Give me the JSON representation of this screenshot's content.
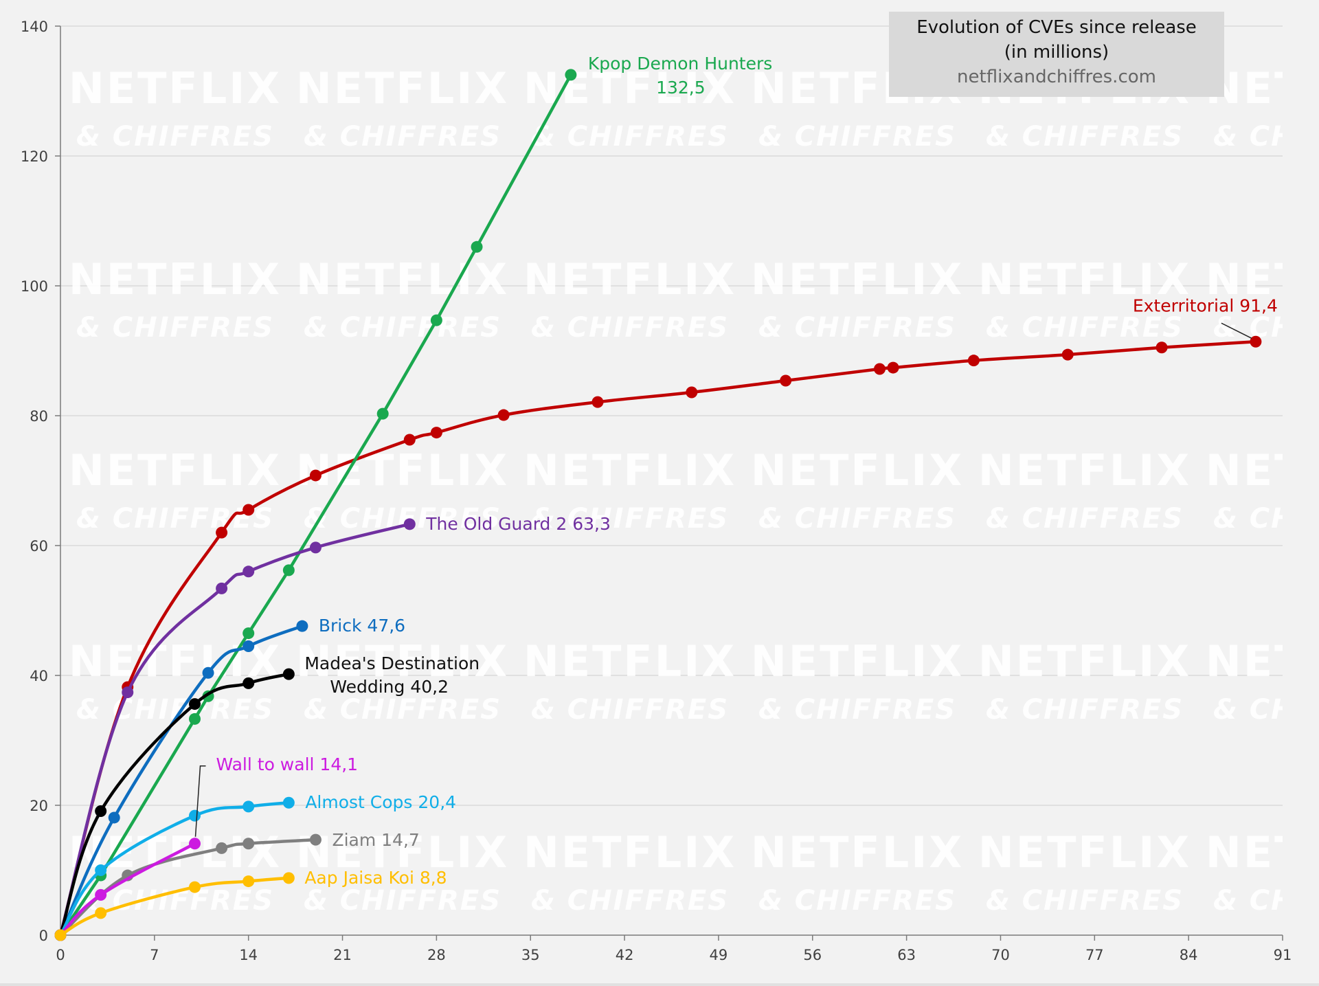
{
  "chart_data": {
    "type": "line",
    "title": "Evolution of CVEs since release",
    "subtitle": "(in millions)",
    "source": "netflixandchiffres.com",
    "watermark": [
      "NETFLIX",
      "& CHIFFRES"
    ],
    "xlim": [
      0,
      91
    ],
    "ylim": [
      0,
      140
    ],
    "xticks": [
      0,
      7,
      14,
      21,
      28,
      35,
      42,
      49,
      56,
      63,
      70,
      77,
      84,
      91
    ],
    "yticks": [
      0,
      20,
      40,
      60,
      80,
      100,
      120,
      140
    ],
    "grid": true,
    "legend": "none",
    "series": [
      {
        "name": "Exterritorial",
        "label": "Exterritorial 91,4",
        "color": "#c00000",
        "x": [
          0,
          5,
          12,
          14,
          19,
          26,
          28,
          33,
          40,
          47,
          54,
          61,
          62,
          68,
          75,
          82,
          89
        ],
        "y": [
          0,
          38.2,
          62,
          65.5,
          70.8,
          76.3,
          77.4,
          80.1,
          82.1,
          83.6,
          85.4,
          87.2,
          87.4,
          88.5,
          89.4,
          90.5,
          91.4
        ]
      },
      {
        "name": "Kpop Demon Hunters",
        "label": "Kpop Demon Hunters 132,5",
        "color": "#1aa84f",
        "x": [
          0,
          3,
          10,
          11,
          14,
          17,
          24,
          28,
          31,
          38
        ],
        "y": [
          0,
          9.2,
          33.3,
          36.8,
          46.5,
          56.2,
          80.3,
          94.7,
          106,
          132.5
        ]
      },
      {
        "name": "The Old Guard 2",
        "label": "The Old Guard 2 63,3",
        "color": "#7030a0",
        "x": [
          0,
          5,
          12,
          14,
          19,
          26
        ],
        "y": [
          0,
          37.4,
          53.4,
          56,
          59.7,
          63.3
        ]
      },
      {
        "name": "Brick",
        "label": "Brick 47,6",
        "color": "#0e6dbf",
        "x": [
          0,
          4,
          11,
          14,
          18
        ],
        "y": [
          0,
          18.1,
          40.4,
          44.5,
          47.6
        ]
      },
      {
        "name": "Madea's Destination Wedding",
        "label": "Madea's Destination Wedding 40,2",
        "color": "#000000",
        "x": [
          0,
          3,
          10,
          14,
          17
        ],
        "y": [
          0,
          19.1,
          35.6,
          38.8,
          40.2
        ]
      },
      {
        "name": "Almost Cops",
        "label": "Almost Cops 20,4",
        "color": "#10aee8",
        "x": [
          0,
          3,
          10,
          14,
          17
        ],
        "y": [
          0,
          10,
          18.4,
          19.8,
          20.4
        ]
      },
      {
        "name": "Ziam",
        "label": "Ziam 14,7",
        "color": "#7f7f7f",
        "x": [
          0,
          5,
          12,
          14,
          19
        ],
        "y": [
          0,
          9.2,
          13.4,
          14.1,
          14.7
        ]
      },
      {
        "name": "Wall to wall",
        "label": "Wall to wall 14,1",
        "color": "#cc1be0",
        "x": [
          0,
          3,
          10
        ],
        "y": [
          0,
          6.2,
          14.1
        ]
      },
      {
        "name": "Aap Jaisa Koi",
        "label": "Aap Jaisa Koi 8,8",
        "color": "#ffbe00",
        "x": [
          0,
          3,
          10,
          14,
          17
        ],
        "y": [
          0,
          3.4,
          7.4,
          8.3,
          8.8
        ]
      }
    ]
  }
}
